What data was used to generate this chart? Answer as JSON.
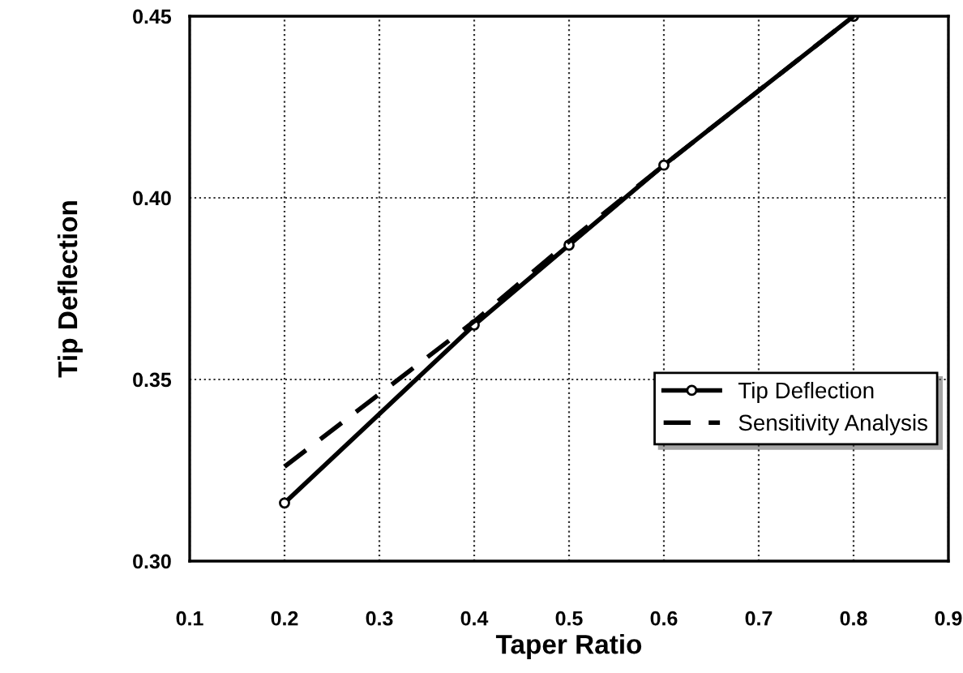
{
  "chart_data": {
    "type": "line",
    "xlabel": "Taper Ratio",
    "ylabel": "Tip Deflection",
    "xlim": [
      0.1,
      0.9
    ],
    "xticks": [
      0.1,
      0.2,
      0.3,
      0.4,
      0.5,
      0.6,
      0.7,
      0.8,
      0.9
    ],
    "ylim": [
      0.3,
      0.45
    ],
    "yticks": [
      {
        "value": 0.3,
        "label": "0.30"
      },
      {
        "value": 0.35,
        "label": "0.35"
      },
      {
        "value": 0.4,
        "label": "0.40"
      },
      {
        "value": 0.45,
        "label": "0.45"
      }
    ],
    "grid": true,
    "legend": "right",
    "series": [
      {
        "name": "Tip Deflection",
        "color": "#000000",
        "x": [
          0.2,
          0.4,
          0.5,
          0.6,
          0.8
        ],
        "values": [
          0.316,
          0.365,
          0.387,
          0.409,
          0.45
        ],
        "marker": "circle",
        "line_style": "solid"
      },
      {
        "name": "Sensitivity Analysis",
        "color": "#000000",
        "x": [
          0.2,
          0.4,
          0.5,
          0.6,
          0.8
        ],
        "values": [
          0.326,
          0.366,
          0.388,
          0.409,
          0.45
        ],
        "marker": "none",
        "line_style": "dashed"
      }
    ]
  }
}
